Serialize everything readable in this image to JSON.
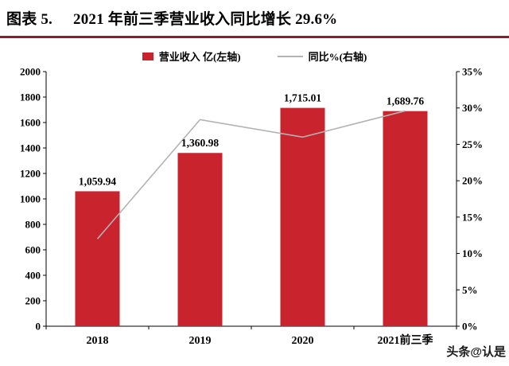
{
  "header": {
    "title_prefix": "图表 5.",
    "title_text": "2021 年前三季营业收入同比增长 29.6%"
  },
  "legend": {
    "bar_label": "营业收入 亿(左轴)",
    "line_label": "同比%(右轴)"
  },
  "watermark": "头条@认是",
  "colors": {
    "bar": "#c9232e",
    "line": "#b3b3b3",
    "title_rule": "#8e1b2c",
    "axis": "#000000",
    "label_text": "#000000"
  },
  "chart_data": {
    "type": "bar",
    "subtype": "bar-line-combo",
    "title": "2021 年前三季营业收入同比增长 29.6%",
    "categories": [
      "2018",
      "2019",
      "2020",
      "2021前三季"
    ],
    "series": [
      {
        "name": "营业收入 亿(左轴)",
        "type": "bar",
        "axis": "left",
        "values": [
          1059.94,
          1360.98,
          1715.01,
          1689.76
        ],
        "data_labels": [
          "1,059.94",
          "1,360.98",
          "1,715.01",
          "1,689.76"
        ]
      },
      {
        "name": "同比%(右轴)",
        "type": "line",
        "axis": "right",
        "values": [
          12.0,
          28.4,
          26.0,
          29.6
        ]
      }
    ],
    "left_axis": {
      "min": 0,
      "max": 2000,
      "step": 200,
      "tick_labels": [
        "0",
        "200",
        "400",
        "600",
        "800",
        "1000",
        "1200",
        "1400",
        "1600",
        "1800",
        "2000"
      ]
    },
    "right_axis": {
      "min": 0,
      "max": 35,
      "step": 5,
      "tick_labels": [
        "0%",
        "5%",
        "10%",
        "15%",
        "20%",
        "25%",
        "30%",
        "35%"
      ]
    },
    "grid": false,
    "legend_position": "top"
  }
}
